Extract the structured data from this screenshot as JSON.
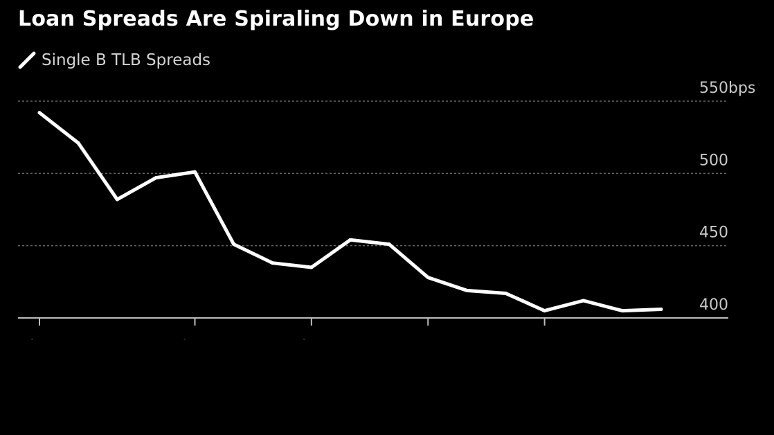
{
  "title": "Loan Spreads Are Spiraling Down in Europe",
  "legend": {
    "label": "Single B TLB Spreads",
    "icon": "line-swatch-icon"
  },
  "colors": {
    "background": "#000000",
    "line": "#ffffff",
    "grid": "#666666",
    "tick_text": "#c8c8c8"
  },
  "chart_data": {
    "type": "line",
    "title": "Loan Spreads Are Spiraling Down in Europe",
    "xlabel": "",
    "ylabel": "",
    "ylim": [
      400,
      550
    ],
    "yticks": [
      {
        "value": 550,
        "label": "550bps"
      },
      {
        "value": 500,
        "label": "500"
      },
      {
        "value": 450,
        "label": "450"
      },
      {
        "value": 400,
        "label": "400"
      }
    ],
    "x_tick_indices": [
      0,
      4,
      7,
      10,
      13
    ],
    "x_tick_labels": [
      "A",
      "J",
      "A",
      "",
      ""
    ],
    "series": [
      {
        "name": "Single B TLB Spreads",
        "values": [
          542,
          521,
          482,
          497,
          501,
          451,
          438,
          435,
          454,
          451,
          428,
          419,
          417,
          405,
          412,
          405,
          406
        ]
      }
    ]
  }
}
